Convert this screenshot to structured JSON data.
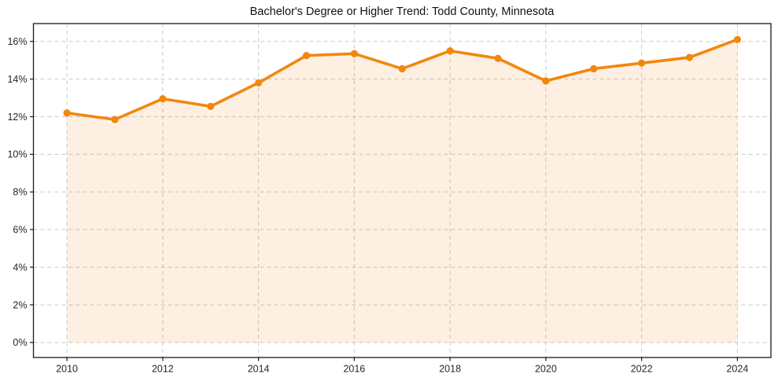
{
  "chart_data": {
    "type": "line",
    "title": "Bachelor's Degree or Higher Trend: Todd County, Minnesota",
    "xlabel": "",
    "ylabel": "",
    "x": [
      2010,
      2011,
      2012,
      2013,
      2014,
      2015,
      2016,
      2017,
      2018,
      2019,
      2020,
      2021,
      2022,
      2023,
      2024
    ],
    "series": [
      {
        "name": "Bachelor's Degree or Higher",
        "values": [
          12.2,
          11.85,
          12.95,
          12.55,
          13.8,
          15.25,
          15.35,
          14.55,
          15.5,
          15.1,
          13.9,
          14.55,
          14.85,
          15.15,
          16.1
        ]
      }
    ],
    "area_fill_to": 0,
    "xlim": [
      2009.3,
      2024.7
    ],
    "ylim": [
      -0.8,
      16.95
    ],
    "xticks": {
      "values": [
        2010,
        2012,
        2014,
        2016,
        2018,
        2020,
        2022,
        2024
      ],
      "labels": [
        "2010",
        "2012",
        "2014",
        "2016",
        "2018",
        "2020",
        "2022",
        "2024"
      ]
    },
    "yticks": {
      "values": [
        0,
        2,
        4,
        6,
        8,
        10,
        12,
        14,
        16
      ],
      "labels": [
        "0%",
        "2%",
        "4%",
        "6%",
        "8%",
        "10%",
        "12%",
        "14%",
        "16%"
      ]
    },
    "grid": true,
    "grid_style": "dashed",
    "legend": "none",
    "marker": "circle",
    "colors": {
      "line": "#f2870e",
      "fill_opacity": 0.12,
      "grid": "#c9c9c9",
      "axis": "#1a1a1a",
      "tick_label": "#262626",
      "title": "#111111",
      "background": "#ffffff"
    }
  }
}
